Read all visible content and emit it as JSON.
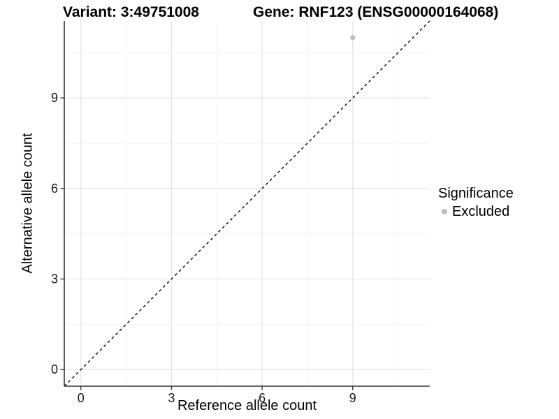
{
  "titles": {
    "variant": "Variant: 3:49751008",
    "gene": "Gene: RNF123 (ENSG00000164068)"
  },
  "chart_data": {
    "type": "scatter",
    "xlabel": "Reference allele count",
    "ylabel": "Alternative allele count",
    "xlim": [
      -0.55,
      11.55
    ],
    "ylim": [
      -0.55,
      11.55
    ],
    "xticks": [
      0,
      3,
      6,
      9
    ],
    "yticks": [
      0,
      3,
      6,
      9
    ],
    "xminor": [
      1.5,
      4.5,
      7.5,
      10.5
    ],
    "yminor": [
      1.5,
      4.5,
      7.5,
      10.5
    ],
    "grid": true,
    "points": [
      {
        "x": 9,
        "y": 11,
        "series": "Excluded"
      }
    ],
    "identity_line": {
      "type": "y=x",
      "style": "dashed",
      "color": "#000000"
    },
    "legend": {
      "title": "Significance",
      "position": "right",
      "items": [
        {
          "label": "Excluded",
          "color": "#bdbdbd"
        }
      ]
    }
  },
  "colors": {
    "background": "#ffffff",
    "point": "#bdbdbd",
    "grid_major": "#e4e4e4",
    "grid_minor": "#f2f2f2",
    "axis_line": "#333333",
    "tick_label": "#1a1a1a",
    "title_text": "#000000"
  }
}
